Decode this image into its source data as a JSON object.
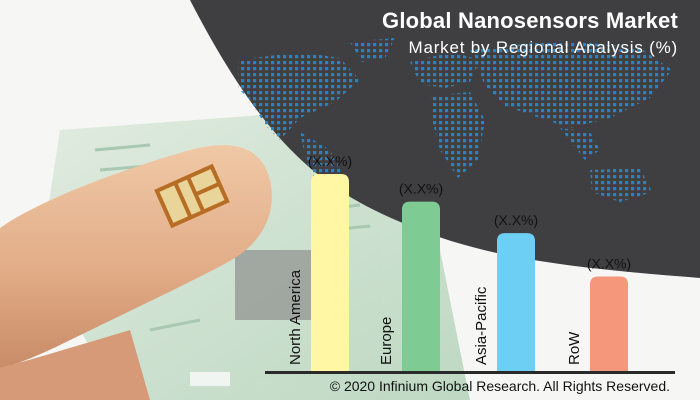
{
  "title": "Global Nanosensors Market",
  "subtitle": "Market by Regional Analysis (%)",
  "copyright": "© 2020 Infinium Global Research. All Rights Reserved.",
  "colors": {
    "dark_background": "#3f3f41",
    "world_map_dots": "#2b86c4",
    "skin": "#e6b593",
    "chip": "#c8842a",
    "circuit_board": "#9ac4a0"
  },
  "chart_data": {
    "type": "bar",
    "categories": [
      "North America",
      "Europe",
      "Asia-Pacific",
      "RoW"
    ],
    "values": [
      100,
      86,
      70,
      48
    ],
    "value_labels": [
      "(X.X%)",
      "(X.X%)",
      "(X.X%)",
      "(X.X%)"
    ],
    "colors": [
      "#fff7a3",
      "#7fcb94",
      "#6ecff5",
      "#f4977a"
    ],
    "xlabel": "",
    "ylabel": "",
    "ylim": [
      0,
      100
    ],
    "grid": false,
    "legend": "none",
    "note": "bar heights are relative; values are not printed on the chart"
  }
}
